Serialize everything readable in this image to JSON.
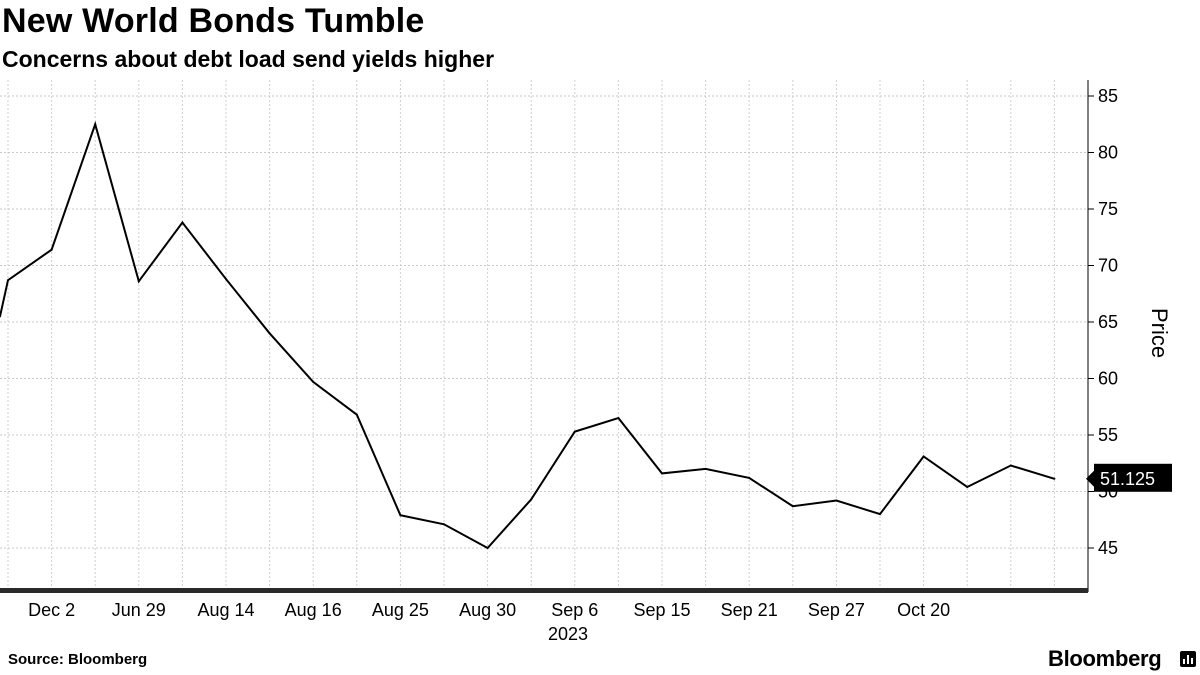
{
  "title": "New World Bonds Tumble",
  "subtitle": "Concerns about debt load send yields higher",
  "source": "Source: Bloomberg",
  "brand": "Bloomberg",
  "chart_data": {
    "type": "line",
    "ylabel": "Price",
    "ylim": [
      42,
      86
    ],
    "y_ticks": [
      45,
      50,
      55,
      60,
      65,
      70,
      75,
      80,
      85
    ],
    "x_tick_labels": [
      "Dec 2",
      "Jun 29",
      "Aug 14",
      "Aug 16",
      "Aug 25",
      "Aug 30",
      "Sep 6",
      "Sep 15",
      "Sep 21",
      "Sep 27",
      "Oct 20"
    ],
    "x_year_label": "2023",
    "grid": true,
    "last_value_label": "51.125",
    "series": [
      {
        "values": [
          65.5,
          68.7,
          71.4,
          82.5,
          68.6,
          73.8,
          68.8,
          64.0,
          59.7,
          56.8,
          47.9,
          47.1,
          45.0,
          49.3,
          55.3,
          56.5,
          51.6,
          52.0,
          51.2,
          48.7,
          49.2,
          48.0,
          53.1,
          50.4,
          52.3,
          51.125
        ]
      }
    ]
  }
}
